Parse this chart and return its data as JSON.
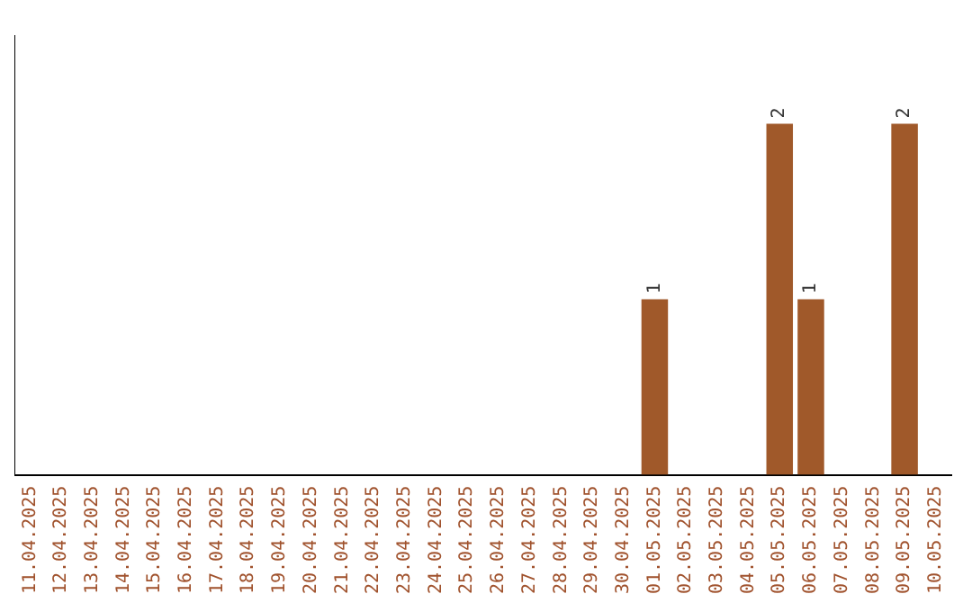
{
  "chart_data": {
    "type": "bar",
    "categories": [
      "11.04.2025",
      "12.04.2025",
      "13.04.2025",
      "14.04.2025",
      "15.04.2025",
      "16.04.2025",
      "17.04.2025",
      "18.04.2025",
      "19.04.2025",
      "20.04.2025",
      "21.04.2025",
      "22.04.2025",
      "23.04.2025",
      "24.04.2025",
      "25.04.2025",
      "26.04.2025",
      "27.04.2025",
      "28.04.2025",
      "29.04.2025",
      "30.04.2025",
      "01.05.2025",
      "02.05.2025",
      "03.05.2025",
      "04.05.2025",
      "05.05.2025",
      "06.05.2025",
      "07.05.2025",
      "08.05.2025",
      "09.05.2025",
      "10.05.2025"
    ],
    "values": [
      null,
      null,
      null,
      null,
      null,
      null,
      null,
      null,
      null,
      null,
      null,
      null,
      null,
      null,
      null,
      null,
      null,
      null,
      null,
      null,
      1,
      null,
      null,
      null,
      2,
      1,
      null,
      null,
      2,
      null
    ],
    "color": "#a0592a",
    "data_labels": true,
    "grid": false,
    "legend": false
  }
}
